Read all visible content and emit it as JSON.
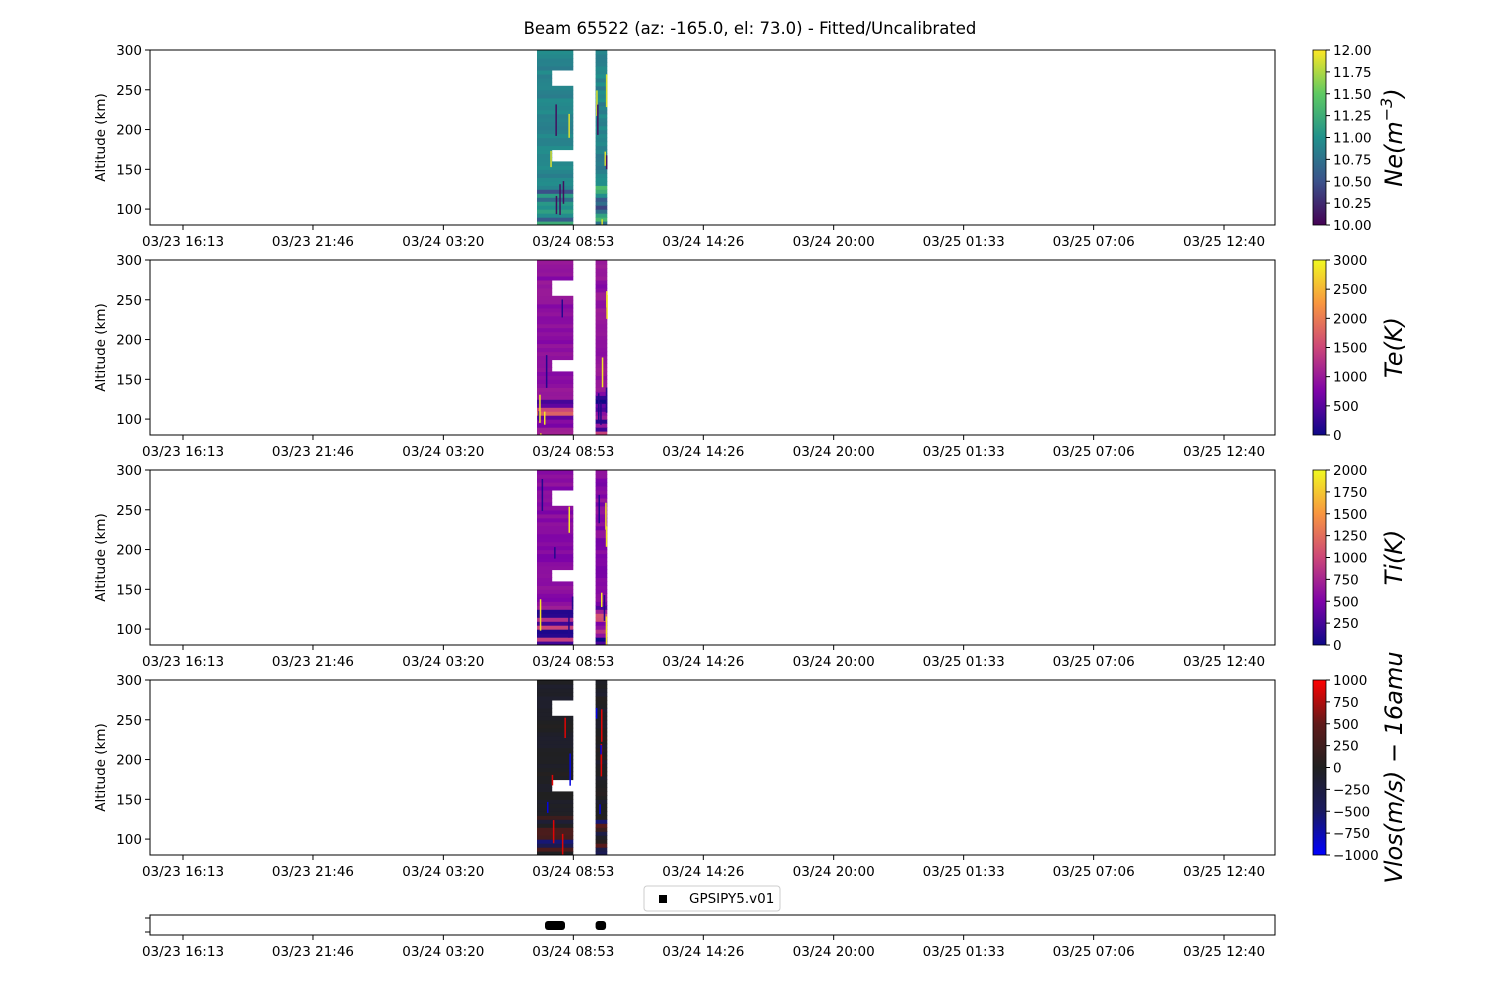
{
  "chart_data": {
    "type": "heatmap",
    "title": "Beam 65522 (az: -165.0, el: 73.0) - Fitted/Uncalibrated",
    "x_tick_labels": [
      "03/23 16:13",
      "03/23 21:46",
      "03/24 03:20",
      "03/24 08:53",
      "03/24 14:26",
      "03/24 20:00",
      "03/25 01:33",
      "03/25 07:06",
      "03/25 12:40"
    ],
    "data_time_intervals": [
      [
        "03/24 07:20",
        "03/24 08:53"
      ],
      [
        "03/24 09:50",
        "03/24 10:20"
      ]
    ],
    "panels": [
      {
        "id": "ne",
        "ylabel": "Altitude (km)",
        "yticks": [
          100,
          150,
          200,
          250,
          300
        ],
        "ylim": [
          80,
          300
        ],
        "colorbar_label": "Ne(m^-3)",
        "colorbar_label_main": "Ne(m",
        "colorbar_label_sup": "−3",
        "colorbar_label_tail": ")",
        "colorbar_ticks": [
          "12.00",
          "11.75",
          "11.50",
          "11.25",
          "11.00",
          "10.75",
          "10.50",
          "10.25",
          "10.00"
        ],
        "clim": [
          10.0,
          12.0
        ],
        "colormap": "viridis",
        "colors": [
          "#440154",
          "#3b528b",
          "#21918c",
          "#5ec962",
          "#fde725"
        ]
      },
      {
        "id": "te",
        "ylabel": "Altitude (km)",
        "yticks": [
          100,
          150,
          200,
          250,
          300
        ],
        "ylim": [
          80,
          300
        ],
        "colorbar_label": "Te(K)",
        "colorbar_ticks": [
          "3000",
          "2500",
          "2000",
          "1500",
          "1000",
          "500",
          "0"
        ],
        "clim": [
          0,
          3000
        ],
        "colormap": "plasma",
        "colors": [
          "#0d0887",
          "#7e03a8",
          "#cc4778",
          "#f89540",
          "#f0f921"
        ]
      },
      {
        "id": "ti",
        "ylabel": "Altitude (km)",
        "yticks": [
          100,
          150,
          200,
          250,
          300
        ],
        "ylim": [
          80,
          300
        ],
        "colorbar_label": "Ti(K)",
        "colorbar_ticks": [
          "2000",
          "1750",
          "1500",
          "1250",
          "1000",
          "750",
          "500",
          "250",
          "0"
        ],
        "clim": [
          0,
          2000
        ],
        "colormap": "plasma",
        "colors": [
          "#0d0887",
          "#7e03a8",
          "#cc4778",
          "#f89540",
          "#f0f921"
        ]
      },
      {
        "id": "vlos",
        "ylabel": "Altitude (km)",
        "yticks": [
          100,
          150,
          200,
          250,
          300
        ],
        "ylim": [
          80,
          300
        ],
        "colorbar_label": "Vlos(m/s) − 16amu",
        "colorbar_ticks": [
          "1000",
          "750",
          "500",
          "250",
          "0",
          "−250",
          "−500",
          "−750",
          "−1000"
        ],
        "clim": [
          -1000,
          1000
        ],
        "colormap": "blue-black-red",
        "colors": [
          "#0000ff",
          "#1a1a60",
          "#202020",
          "#601a1a",
          "#ff0000"
        ]
      }
    ],
    "legend": {
      "label": "GPSIPY5.v01",
      "marker": "square",
      "color": "#000000",
      "placement": "upper center"
    }
  }
}
